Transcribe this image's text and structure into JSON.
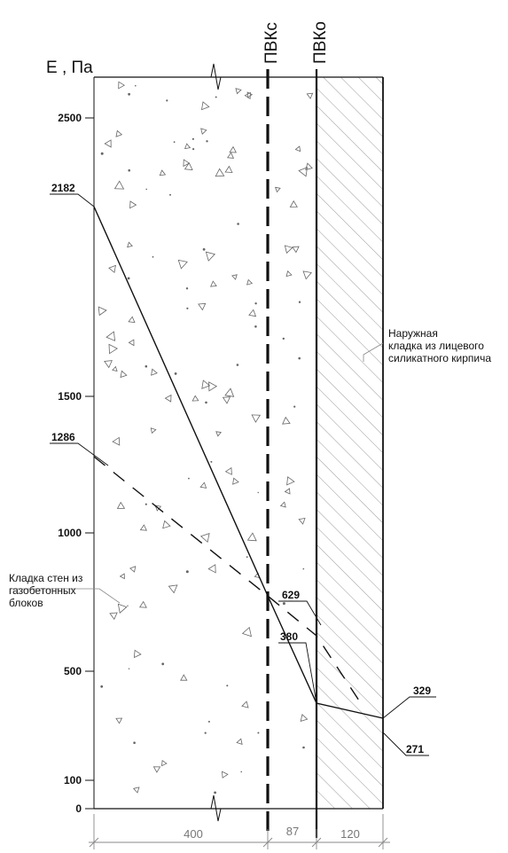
{
  "axis": {
    "title": "Е , Па",
    "ticks": [
      "2500",
      "1500",
      "1000",
      "500",
      "100",
      "0"
    ]
  },
  "planes": {
    "pvk_c": "ПВКс",
    "pvk_o": "ПВКо"
  },
  "labels": {
    "outer_masonry": [
      "Наружная",
      "кладка из лицевого",
      "силикатного кирпича"
    ],
    "inner_masonry": [
      "Кладка стен из",
      "газобетонных",
      "блоков"
    ]
  },
  "callouts": {
    "v2182": "2182",
    "v1286": "1286",
    "v629": "629",
    "v380": "380",
    "v329": "329",
    "v271": "271"
  },
  "dimensions": {
    "d400": "400",
    "d87": "87",
    "d120": "120"
  },
  "colors": {
    "line": "#111111",
    "hatch": "#9a9a9a",
    "dot": "#666666"
  }
}
